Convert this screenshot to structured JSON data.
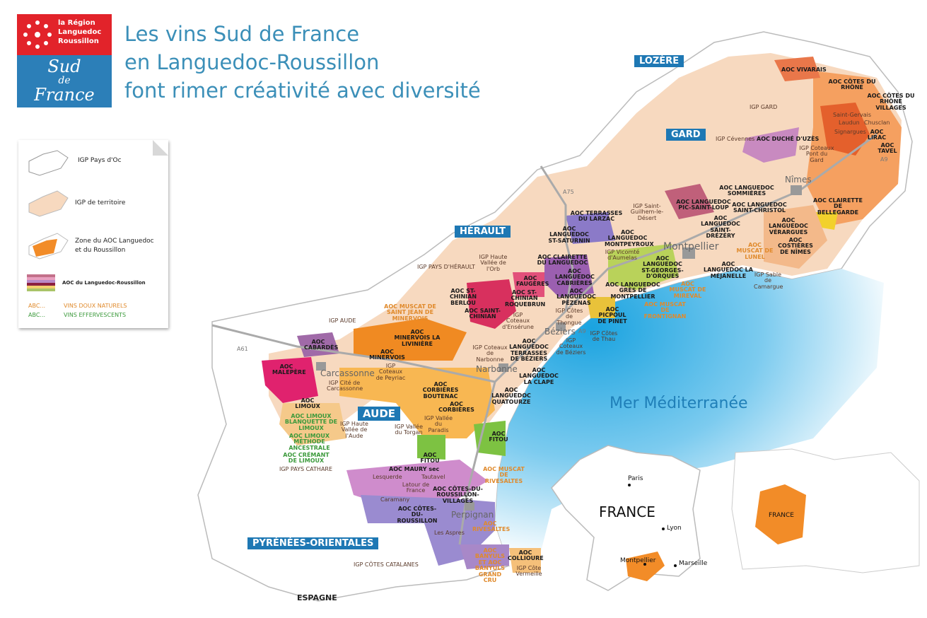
{
  "logo": {
    "region_lines": [
      "la Région",
      "Languedoc",
      "Roussillon"
    ],
    "brand_lines": [
      "Sud",
      "de",
      "France"
    ],
    "colors": {
      "red": "#e2232a",
      "blue": "#2c7fb8"
    }
  },
  "title": {
    "line1": "Les vins Sud de France",
    "line2": "en Languedoc-Roussillon",
    "line3": "font rimer créativité avec diversité"
  },
  "legend": {
    "items": [
      "IGP Pays d'Oc",
      "IGP de territoire",
      "Zone du AOC Languedoc",
      "et du Roussillon",
      "AOC du Languedoc-Roussillon"
    ],
    "abc": "ABC...",
    "vdn": "VINS DOUX NATURELS",
    "eff": "VINS EFFERVESCENTS",
    "colors": {
      "igp_territoire": "#f7d9bf",
      "zone_aoc": "#f28c28",
      "vdn": "#e08a2c",
      "eff": "#3c9a3c"
    }
  },
  "departments": [
    "LOZÈRE",
    "GARD",
    "HÉRAULT",
    "AUDE",
    "PYRÉNÉES-ORIENTALES"
  ],
  "sea": "Mer Méditerranée",
  "cities": [
    "Montpellier",
    "Nîmes",
    "Béziers",
    "Narbonne",
    "Carcassonne",
    "Perpignan"
  ],
  "aoc_labels": [
    "AOC VIVARAIS",
    "AOC CÔTES DU RHÔNE",
    "AOC CÔTES DU RHÔNE VILLAGES",
    "AOC LIRAC",
    "AOC TAVEL",
    "AOC DUCHÉ D'UZÈS",
    "AOC LANGUEDOC SOMMIÈRES",
    "AOC LANGUEDOC SAINT-CHRISTOL",
    "AOC LANGUEDOC SAINT-DRÉZÉRY",
    "AOC CLAIRETTE DE BELLEGARDE",
    "AOC LANGUEDOC VÉRARGUES",
    "AOC COSTIÈRES DE NÎMES",
    "AOC LANGUEDOC LA MÉJANELLE",
    "AOC LANGUEDOC PIC-SAINT-LOUP",
    "AOC TERRASSES DU LARZAC",
    "AOC LANGUEDOC ST-SATURNIN",
    "AOC LANGUEDOC MONTPEYROUX",
    "AOC LANGUEDOC ST-GEORGES-D'ORQUES",
    "AOC CLAIRETTE DU LANGUEDOC",
    "AOC LANGUEDOC CABRIÈRES",
    "AOC LANGUEDOC GRÈS DE MONTPELLIER",
    "AOC FAUGÈRES",
    "AOC LANGUEDOC PÉZENAS",
    "AOC ST-CHINIAN BERLOU",
    "AOC ST-CHINIAN ROQUEBRUN",
    "AOC SAINT-CHINIAN",
    "AOC PICPOUL DE PINET",
    "AOC LANGUEDOC TERRASSES DE BÉZIERS",
    "AOC MINERVOIS LA LIVINIÈRE",
    "AOC MINERVOIS",
    "AOC CABARDÈS",
    "AOC MALEPÈRE",
    "AOC LANGUEDOC LA CLAPE",
    "AOC LANGUEDOC QUATOURZE",
    "AOC CORBIÈRES BOUTENAC",
    "AOC CORBIÈRES",
    "AOC LIMOUX",
    "AOC FITOU",
    "AOC FITOU",
    "AOC MAURY sec",
    "AOC CÔTES-DU-ROUSSILLON-VILLAGES",
    "AOC CÔTES-DU-ROUSSILLON",
    "AOC COLLIOURE"
  ],
  "igp_labels": [
    "IGP GARD",
    "IGP Cévennes",
    "IGP Coteaux Pont du Gard",
    "IGP Saint-Guilhem-le-Désert",
    "IGP Vicomté d'Aumelas",
    "IGP Haute Vallée de l'Orb",
    "IGP PAYS D'HÉRAULT",
    "IGP Côtes de Thongue",
    "IGP Coteaux d'Ensérune",
    "IGP Coteaux de Béziers",
    "IGP Côtes de Thau",
    "IGP Sable de Camargue",
    "IGP AUDE",
    "IGP Coteaux de Peyriac",
    "IGP Coteaux de Narbonne",
    "IGP Cité de Carcassonne",
    "IGP Haute Vallée de l'Aude",
    "IGP Vallée du Paradis",
    "IGP Vallée du Torgan",
    "IGP PAYS CATHARE",
    "IGP CÔTES CATALANES",
    "IGP Côte Vermeille"
  ],
  "terroirs": [
    "Saint-Gervais",
    "Laudun",
    "Signargues",
    "Chusclan",
    "Tautavel",
    "Lesquerde",
    "Latour de France",
    "Caramany",
    "Les Aspres"
  ],
  "vdn_labels": [
    "AOC MUSCAT DE LUNEL",
    "AOC MUSCAT DE MIREVAL",
    "AOC MUSCAT DE FRONTIGNAN",
    "AOC MUSCAT DE SAINT JEAN DE MINERVOIS",
    "AOC MUSCAT DE RIVESALTES",
    "AOC RIVESALTES",
    "AOC BANYULS ET AOC BANYULS GRAND CRU"
  ],
  "eff_labels": [
    "AOC LIMOUX BLANQUETTE DE LIMOUX",
    "AOC LIMOUX MÉTHODE ANCESTRALE",
    "AOC CRÉMANT DE LIMOUX"
  ],
  "roads": [
    "A75",
    "A9",
    "A61",
    "A9"
  ],
  "neighbors": {
    "spain": "ESPAGNE"
  },
  "france_inset": {
    "country": "FRANCE",
    "cities": [
      "Paris",
      "Lyon",
      "Marseille",
      "Montpellier"
    ],
    "highlight": "#f28c28"
  },
  "europe_inset": {
    "country": "FRANCE"
  }
}
